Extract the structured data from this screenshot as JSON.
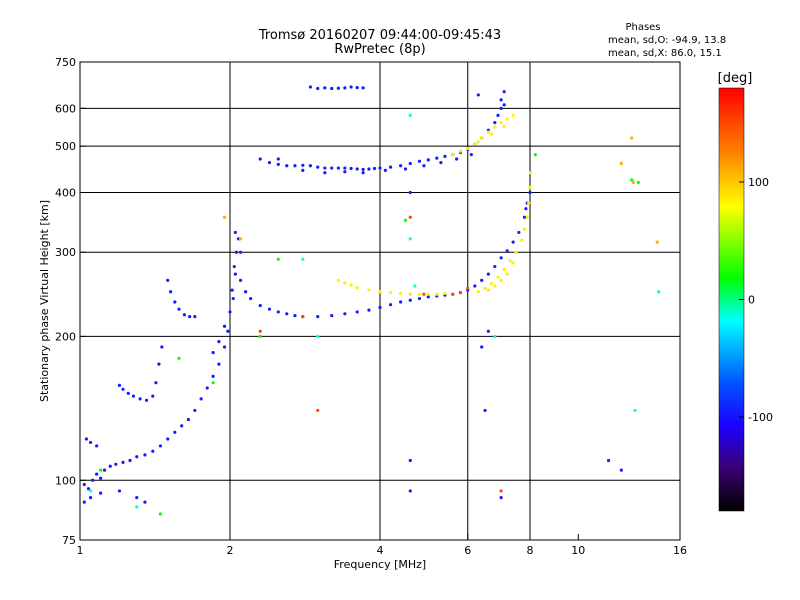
{
  "chart_data": {
    "type": "scatter",
    "title": "Tromsø 20160207 09:44:00-09:45:43",
    "subtitle": "RwPretec (8p)",
    "xlabel": "Frequency [MHz]",
    "ylabel": "Stationary phase Virtual Height [km]",
    "xscale": "log",
    "yscale": "log",
    "xlim": [
      1,
      16
    ],
    "ylim": [
      75,
      750
    ],
    "x_ticks": [
      1,
      2,
      4,
      6,
      8,
      10,
      16
    ],
    "y_ticks": [
      75,
      100,
      200,
      300,
      400,
      500,
      600,
      750
    ],
    "grid_x": [
      2,
      4,
      6,
      8
    ],
    "grid_y": [
      100,
      200,
      300,
      400,
      500,
      600
    ],
    "grid": true,
    "stats": {
      "title": "Phases",
      "line1": "mean, sd,O: -94.9, 13.8",
      "line2": "mean, sd,X:  86.0, 15.1"
    },
    "colorbar": {
      "label": "[deg]",
      "range": [
        -180,
        180
      ],
      "ticks": [
        100,
        0,
        -100
      ],
      "placement": "right"
    },
    "series": [
      {
        "phase": -95,
        "points": [
          [
            1.02,
            98
          ],
          [
            1.04,
            96
          ],
          [
            1.06,
            100
          ],
          [
            1.08,
            103
          ],
          [
            1.1,
            101
          ],
          [
            1.12,
            105
          ],
          [
            1.15,
            107
          ],
          [
            1.18,
            108
          ],
          [
            1.22,
            109
          ],
          [
            1.26,
            110
          ],
          [
            1.3,
            112
          ],
          [
            1.35,
            113
          ],
          [
            1.4,
            115
          ],
          [
            1.45,
            118
          ],
          [
            1.5,
            122
          ],
          [
            1.55,
            126
          ],
          [
            1.6,
            130
          ],
          [
            1.65,
            134
          ],
          [
            1.7,
            140
          ],
          [
            1.75,
            148
          ],
          [
            1.8,
            156
          ],
          [
            1.85,
            165
          ],
          [
            1.9,
            175
          ],
          [
            1.95,
            190
          ],
          [
            1.98,
            205
          ],
          [
            2.0,
            225
          ],
          [
            2.02,
            250
          ],
          [
            2.04,
            280
          ],
          [
            2.06,
            300
          ],
          [
            2.05,
            270
          ],
          [
            2.03,
            240
          ],
          [
            1.2,
            158
          ],
          [
            1.22,
            155
          ],
          [
            1.25,
            152
          ],
          [
            1.28,
            150
          ],
          [
            1.32,
            148
          ],
          [
            1.36,
            147
          ],
          [
            1.4,
            150
          ],
          [
            1.42,
            160
          ],
          [
            1.44,
            175
          ],
          [
            1.46,
            190
          ],
          [
            1.5,
            262
          ],
          [
            1.52,
            248
          ],
          [
            1.55,
            236
          ],
          [
            1.58,
            228
          ],
          [
            1.62,
            222
          ],
          [
            1.66,
            220
          ],
          [
            1.7,
            220
          ],
          [
            1.03,
            122
          ],
          [
            1.05,
            120
          ],
          [
            1.08,
            118
          ],
          [
            1.02,
            90
          ],
          [
            1.05,
            92
          ],
          [
            1.1,
            94
          ],
          [
            1.2,
            95
          ],
          [
            1.3,
            92
          ],
          [
            1.35,
            90
          ],
          [
            1.85,
            185
          ],
          [
            1.9,
            195
          ],
          [
            1.95,
            210
          ],
          [
            2.05,
            330
          ],
          [
            2.08,
            320
          ],
          [
            2.1,
            300
          ],
          [
            2.1,
            262
          ],
          [
            2.15,
            248
          ],
          [
            2.2,
            240
          ],
          [
            2.3,
            232
          ],
          [
            2.4,
            228
          ],
          [
            2.5,
            225
          ],
          [
            2.6,
            223
          ],
          [
            2.7,
            221
          ],
          [
            2.8,
            220
          ],
          [
            3.0,
            220
          ],
          [
            3.2,
            221
          ],
          [
            3.4,
            223
          ],
          [
            3.6,
            225
          ],
          [
            3.8,
            227
          ],
          [
            4.0,
            230
          ],
          [
            4.2,
            233
          ],
          [
            4.4,
            236
          ],
          [
            4.6,
            238
          ],
          [
            4.8,
            240
          ],
          [
            5.0,
            242
          ],
          [
            5.2,
            243
          ],
          [
            5.4,
            244
          ],
          [
            5.6,
            245
          ],
          [
            5.8,
            247
          ],
          [
            6.0,
            250
          ],
          [
            6.2,
            255
          ],
          [
            6.4,
            262
          ],
          [
            6.6,
            270
          ],
          [
            6.8,
            280
          ],
          [
            7.0,
            292
          ],
          [
            7.2,
            302
          ],
          [
            7.4,
            315
          ],
          [
            7.6,
            330
          ],
          [
            7.8,
            355
          ],
          [
            7.9,
            380
          ],
          [
            8.0,
            400
          ],
          [
            7.85,
            370
          ],
          [
            2.3,
            470
          ],
          [
            2.4,
            462
          ],
          [
            2.5,
            458
          ],
          [
            2.6,
            455
          ],
          [
            2.7,
            455
          ],
          [
            2.8,
            456
          ],
          [
            2.9,
            455
          ],
          [
            3.0,
            452
          ],
          [
            3.1,
            450
          ],
          [
            3.2,
            450
          ],
          [
            3.3,
            450
          ],
          [
            3.4,
            450
          ],
          [
            3.5,
            449
          ],
          [
            3.6,
            448
          ],
          [
            3.7,
            447
          ],
          [
            3.8,
            448
          ],
          [
            3.9,
            449
          ],
          [
            4.0,
            450
          ],
          [
            4.2,
            452
          ],
          [
            4.4,
            455
          ],
          [
            4.6,
            460
          ],
          [
            4.8,
            465
          ],
          [
            5.0,
            468
          ],
          [
            5.2,
            472
          ],
          [
            5.4,
            476
          ],
          [
            5.6,
            480
          ],
          [
            5.8,
            485
          ],
          [
            6.0,
            492
          ],
          [
            6.2,
            505
          ],
          [
            6.4,
            520
          ],
          [
            6.6,
            540
          ],
          [
            6.8,
            560
          ],
          [
            6.9,
            580
          ],
          [
            7.0,
            600
          ],
          [
            7.1,
            610
          ],
          [
            2.5,
            470
          ],
          [
            2.8,
            445
          ],
          [
            3.1,
            440
          ],
          [
            3.4,
            442
          ],
          [
            3.7,
            440
          ],
          [
            4.1,
            445
          ],
          [
            4.5,
            448
          ],
          [
            4.9,
            455
          ],
          [
            5.3,
            462
          ],
          [
            5.7,
            470
          ],
          [
            6.1,
            480
          ],
          [
            2.9,
            665
          ],
          [
            3.0,
            660
          ],
          [
            3.1,
            662
          ],
          [
            3.2,
            660
          ],
          [
            3.3,
            661
          ],
          [
            3.4,
            662
          ],
          [
            3.5,
            665
          ],
          [
            3.6,
            663
          ],
          [
            3.7,
            662
          ],
          [
            6.3,
            640
          ],
          [
            7.0,
            625
          ],
          [
            7.1,
            650
          ],
          [
            4.6,
            400
          ],
          [
            6.4,
            190
          ],
          [
            6.6,
            205
          ],
          [
            6.5,
            140
          ],
          [
            4.6,
            95
          ],
          [
            4.6,
            110
          ],
          [
            7.0,
            92
          ],
          [
            11.5,
            110
          ],
          [
            12.2,
            105
          ]
        ]
      },
      {
        "phase": 85,
        "points": [
          [
            3.3,
            262
          ],
          [
            3.4,
            259
          ],
          [
            3.5,
            256
          ],
          [
            3.6,
            253
          ],
          [
            3.8,
            250
          ],
          [
            4.0,
            248
          ],
          [
            4.2,
            247
          ],
          [
            4.4,
            246
          ],
          [
            4.6,
            245
          ],
          [
            4.8,
            245
          ],
          [
            5.0,
            245
          ],
          [
            5.2,
            245
          ],
          [
            5.4,
            246
          ],
          [
            6.3,
            248
          ],
          [
            6.5,
            252
          ],
          [
            6.7,
            258
          ],
          [
            6.9,
            266
          ],
          [
            7.1,
            276
          ],
          [
            7.3,
            288
          ],
          [
            7.5,
            300
          ],
          [
            7.7,
            318
          ],
          [
            7.8,
            335
          ],
          [
            7.9,
            355
          ],
          [
            7.95,
            380
          ],
          [
            8.0,
            410
          ],
          [
            8.02,
            440
          ],
          [
            6.6,
            250
          ],
          [
            7.0,
            262
          ],
          [
            7.4,
            285
          ],
          [
            6.8,
            255
          ],
          [
            7.2,
            270
          ],
          [
            5.6,
            480
          ],
          [
            5.8,
            488
          ],
          [
            6.0,
            494
          ],
          [
            6.2,
            505
          ],
          [
            6.4,
            520
          ],
          [
            6.6,
            535
          ],
          [
            6.8,
            548
          ],
          [
            7.0,
            560
          ],
          [
            7.2,
            570
          ],
          [
            7.4,
            580
          ],
          [
            6.3,
            510
          ],
          [
            6.7,
            530
          ],
          [
            7.1,
            550
          ]
        ]
      },
      {
        "phase": 15,
        "points": [
          [
            1.1,
            105
          ],
          [
            1.45,
            85
          ],
          [
            1.58,
            180
          ],
          [
            1.85,
            160
          ],
          [
            2.3,
            200
          ],
          [
            2.5,
            290
          ],
          [
            4.5,
            350
          ],
          [
            8.2,
            480
          ],
          [
            12.8,
            425
          ],
          [
            13.2,
            420
          ]
        ]
      },
      {
        "phase": -15,
        "points": [
          [
            1.05,
            95
          ],
          [
            1.3,
            88
          ],
          [
            2.8,
            290
          ],
          [
            3.0,
            200
          ],
          [
            4.6,
            580
          ],
          [
            4.6,
            320
          ],
          [
            4.7,
            255
          ],
          [
            6.8,
            200
          ],
          [
            14.5,
            248
          ],
          [
            13.0,
            140
          ]
        ]
      },
      {
        "phase": 150,
        "points": [
          [
            4.6,
            355
          ],
          [
            5.6,
            245
          ],
          [
            5.8,
            247
          ],
          [
            6.0,
            252
          ],
          [
            4.9,
            245
          ],
          [
            2.3,
            205
          ],
          [
            2.8,
            220
          ],
          [
            7.0,
            95
          ],
          [
            3.0,
            140
          ]
        ]
      },
      {
        "phase": 110,
        "points": [
          [
            12.8,
            520
          ],
          [
            14.4,
            315
          ],
          [
            12.2,
            460
          ],
          [
            2.1,
            320
          ],
          [
            1.95,
            355
          ],
          [
            12.9,
            420
          ]
        ]
      }
    ]
  }
}
